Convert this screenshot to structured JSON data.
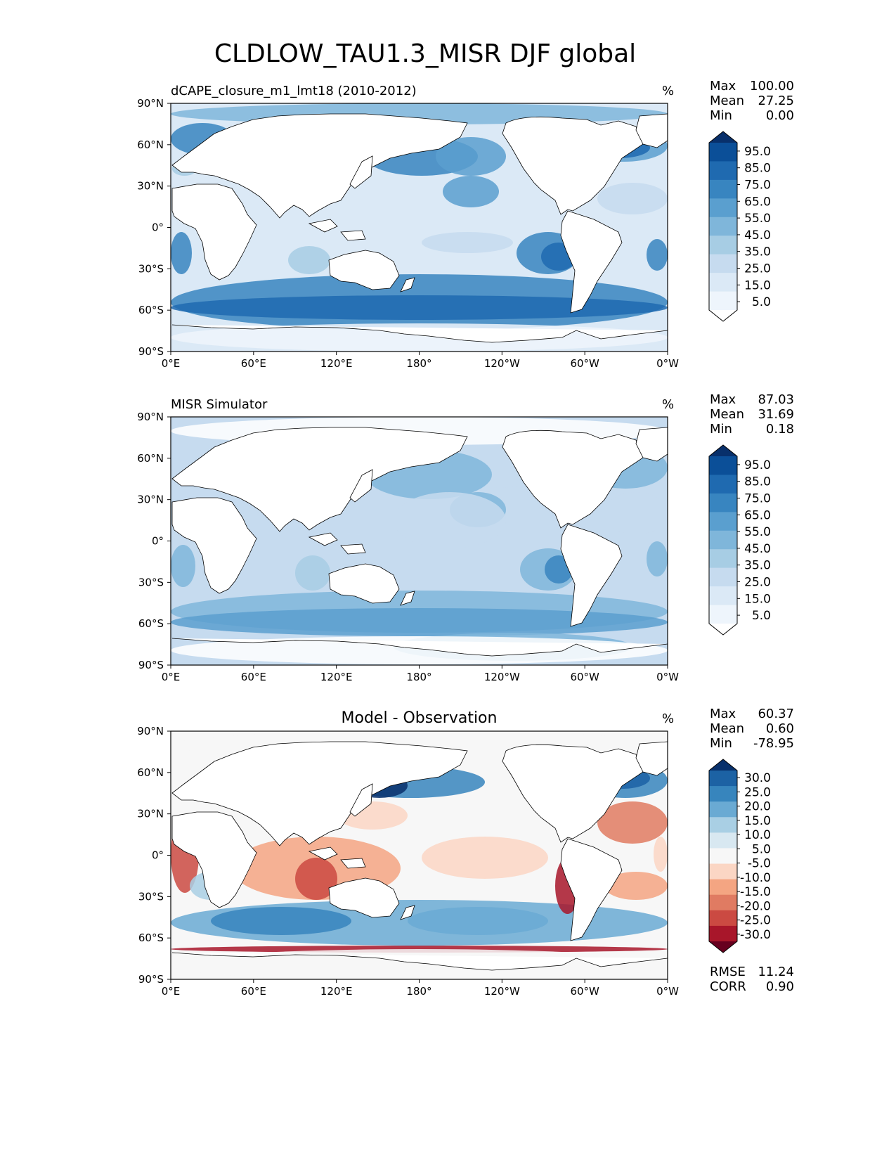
{
  "figure_title": "CLDLOW_TAU1.3_MISR DJF global",
  "panels": [
    {
      "title_left": "dCAPE_closure_m1_lmt18 (2010-2012)",
      "title_center": "",
      "units": "%",
      "stats": [
        {
          "label": "Max",
          "value": "100.00"
        },
        {
          "label": "Mean",
          "value": "27.25"
        },
        {
          "label": "Min",
          "value": "0.00"
        }
      ],
      "colorbar_labels": [
        "95.0",
        "85.0",
        "75.0",
        "65.0",
        "55.0",
        "45.0",
        "35.0",
        "25.0",
        "15.0",
        "5.0"
      ],
      "footer": []
    },
    {
      "title_left": "MISR Simulator",
      "title_center": "",
      "units": "%",
      "stats": [
        {
          "label": "Max",
          "value": "87.03"
        },
        {
          "label": "Mean",
          "value": "31.69"
        },
        {
          "label": "Min",
          "value": "0.18"
        }
      ],
      "colorbar_labels": [
        "95.0",
        "85.0",
        "75.0",
        "65.0",
        "55.0",
        "45.0",
        "35.0",
        "25.0",
        "15.0",
        "5.0"
      ],
      "footer": []
    },
    {
      "title_left": "",
      "title_center": "Model - Observation",
      "units": "%",
      "stats": [
        {
          "label": "Max",
          "value": "60.37"
        },
        {
          "label": "Mean",
          "value": "0.60"
        },
        {
          "label": "Min",
          "value": "-78.95"
        }
      ],
      "colorbar_labels": [
        "30.0",
        "25.0",
        "20.0",
        "15.0",
        "10.0",
        "5.0",
        "-5.0",
        "-10.0",
        "-15.0",
        "-20.0",
        "-25.0",
        "-30.0"
      ],
      "footer": [
        {
          "label": "RMSE",
          "value": "11.24"
        },
        {
          "label": "CORR",
          "value": "0.90"
        }
      ]
    }
  ],
  "axes": {
    "x_ticks": [
      "0°E",
      "60°E",
      "120°E",
      "180°",
      "120°W",
      "60°W",
      "0°W"
    ],
    "y_ticks": [
      "90°N",
      "60°N",
      "30°N",
      "0°",
      "30°S",
      "60°S",
      "90°S"
    ]
  },
  "colors": {
    "seq": [
      "#ffffff",
      "#eef5fc",
      "#dbe9f6",
      "#c6dbef",
      "#a7cde4",
      "#7fb6da",
      "#5a9fcf",
      "#3885c0",
      "#1f6ab0",
      "#0b4f98",
      "#08306b"
    ],
    "div": [
      "#67001f",
      "#a8162a",
      "#cb4a42",
      "#e07b62",
      "#f4a582",
      "#fbd6c4",
      "#f7f7f7",
      "#d8e8f1",
      "#a9cfe4",
      "#6aaad3",
      "#3785bd",
      "#1c62a4",
      "#08306b"
    ],
    "land": "#ffffff",
    "coast": "#000000"
  }
}
